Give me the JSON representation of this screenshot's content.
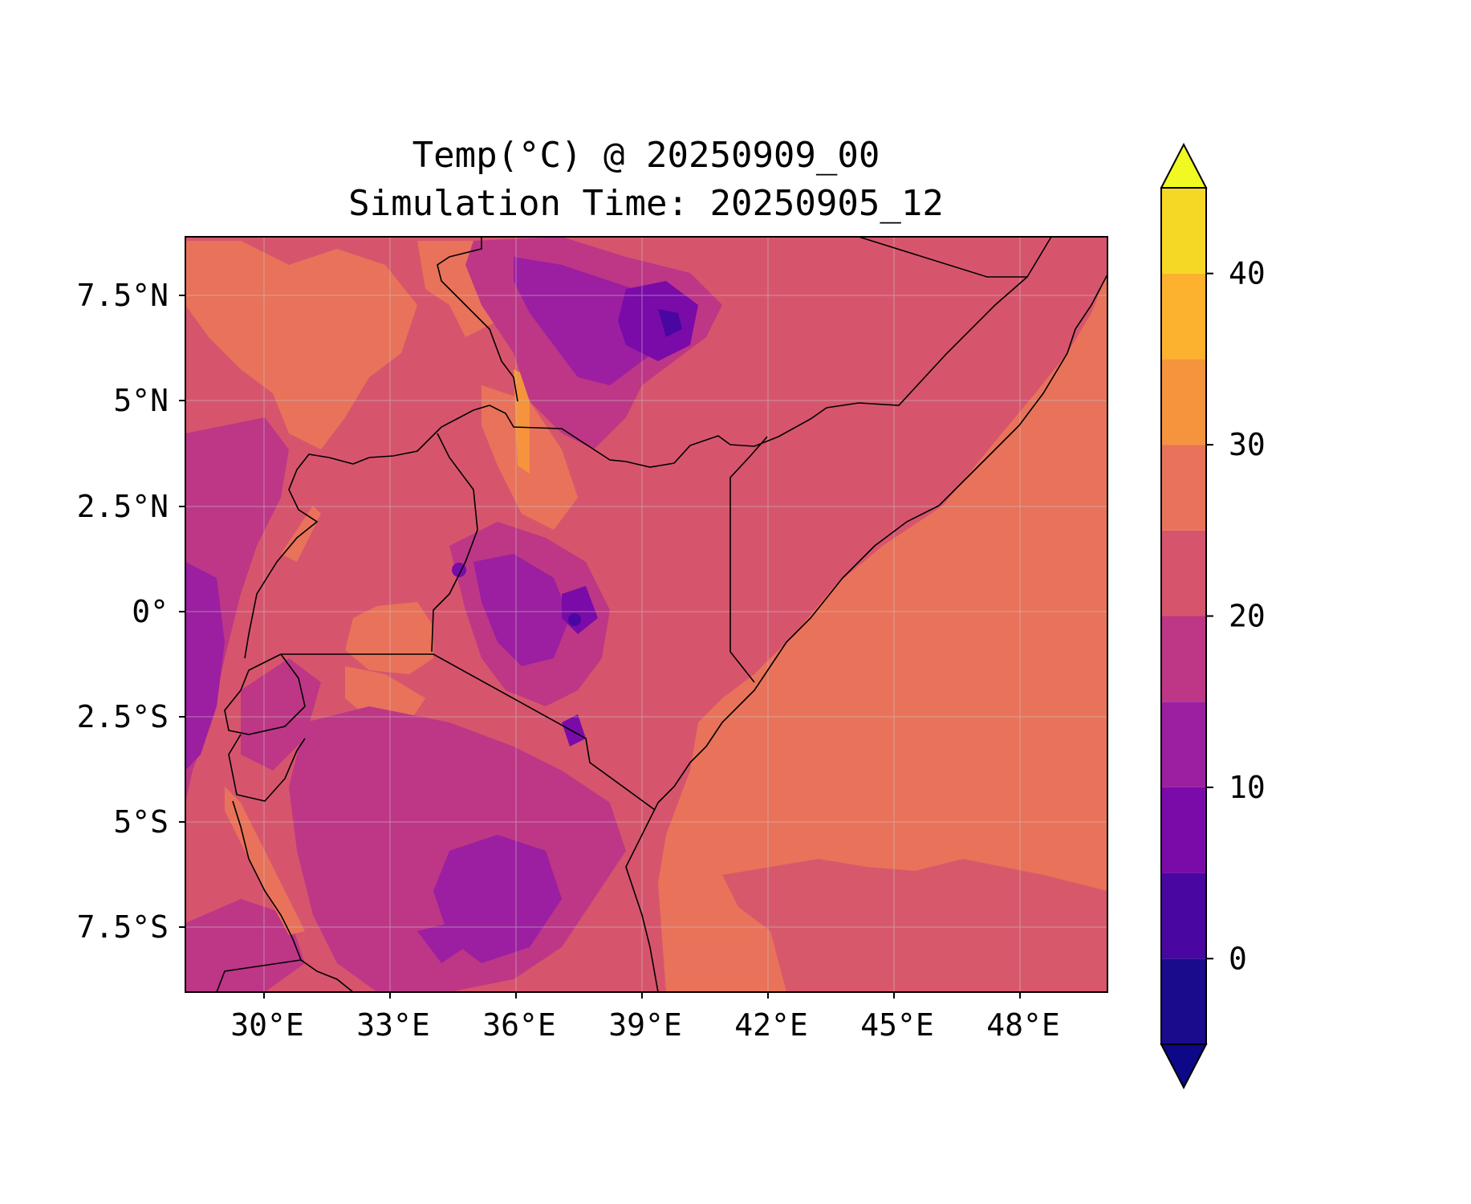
{
  "figure": {
    "title_line1": "Temp(°C) @ 20250909_00",
    "title_line2": "Simulation Time: 20250905_12"
  },
  "axes": {
    "x_ticks": [
      "30°E",
      "33°E",
      "36°E",
      "39°E",
      "42°E",
      "45°E",
      "48°E"
    ],
    "y_ticks": [
      "7.5°N",
      "5°N",
      "2.5°N",
      "0°",
      "2.5°S",
      "5°S",
      "7.5°S"
    ]
  },
  "colorbar": {
    "tick_labels": [
      "0",
      "10",
      "20",
      "30",
      "40"
    ],
    "level_colors": [
      "#1a0a8c",
      "#4a06a0",
      "#7a0ba8",
      "#9b1fa0",
      "#bd3786",
      "#d6556d",
      "#e8735a",
      "#f5943c",
      "#fcb22e",
      "#f5d826"
    ],
    "extend_low_color": "#0d0887",
    "extend_high_color": "#f0f921"
  },
  "chart_data": {
    "type": "heatmap",
    "title": "Temp(°C) @ 20250909_00\nSimulation Time: 20250905_12",
    "x_range_deg_lon": [
      28,
      50
    ],
    "y_range_deg_lat": [
      -9,
      9
    ],
    "x_ticks": [
      30,
      33,
      36,
      39,
      42,
      45,
      48
    ],
    "y_ticks": [
      7.5,
      5,
      2.5,
      0,
      -2.5,
      -5,
      -7.5
    ],
    "colorbar": {
      "min": -5,
      "max": 45,
      "step": 5,
      "ticks": [
        0,
        10,
        20,
        30,
        40
      ],
      "extend": "both",
      "colormap": "plasma"
    },
    "grid": true
  }
}
